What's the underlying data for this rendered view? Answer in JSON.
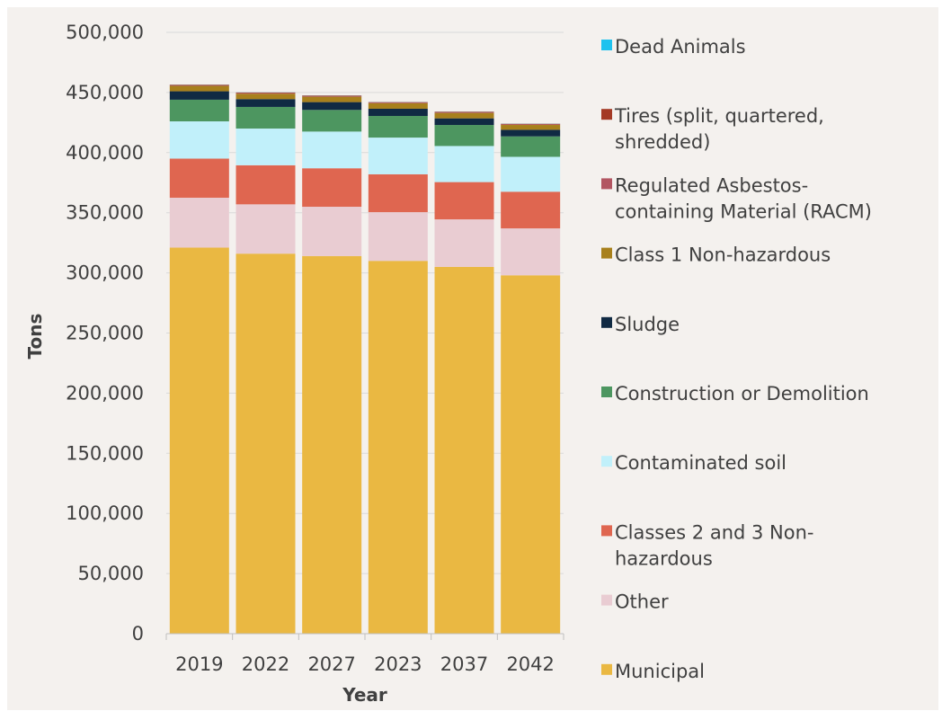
{
  "chart_data": {
    "type": "bar",
    "stacked": true,
    "categories": [
      "2019",
      "2022",
      "2027",
      "2023",
      "2037",
      "2042"
    ],
    "xlabel": "Year",
    "ylabel": "Tons",
    "ylim": [
      0,
      500000
    ],
    "yticks": [
      "0",
      "50,000",
      "100,000",
      "150,000",
      "200,000",
      "250,000",
      "300,000",
      "350,000",
      "400,000",
      "450,000",
      "500,000"
    ],
    "grid": true,
    "legend_position": "right",
    "series": [
      {
        "name": "Municipal",
        "color": "#eab842",
        "values": [
          321000,
          316000,
          314000,
          310000,
          305000,
          298000
        ]
      },
      {
        "name": "Other",
        "color": "#e9ccd2",
        "values": [
          41500,
          41000,
          41000,
          40500,
          39500,
          39000
        ]
      },
      {
        "name": "Classes 2 and 3 Non-hazardous",
        "color": "#df6650",
        "values": [
          32500,
          32500,
          32000,
          31500,
          31000,
          30500
        ]
      },
      {
        "name": "Contaminated soil",
        "color": "#c1f0fa",
        "values": [
          31000,
          30500,
          30500,
          30500,
          30000,
          29000
        ]
      },
      {
        "name": "Construction or Demolition",
        "color": "#4d9660",
        "values": [
          18000,
          18000,
          18000,
          18000,
          17500,
          17000
        ]
      },
      {
        "name": "Sludge",
        "color": "#102a43",
        "values": [
          7000,
          6500,
          6500,
          6000,
          5500,
          5500
        ]
      },
      {
        "name": "Class 1 Non-hazardous",
        "color": "#a8801c",
        "values": [
          4500,
          4500,
          4500,
          4500,
          4500,
          4000
        ]
      },
      {
        "name": "Regulated Asbestos-containing Material (RACM)",
        "color": "#b25561",
        "values": [
          500,
          500,
          500,
          500,
          500,
          500
        ]
      },
      {
        "name": "Tires (split, quartered, shredded)",
        "color": "#a43a25",
        "values": [
          500,
          500,
          500,
          500,
          500,
          500
        ]
      },
      {
        "name": "Dead Animals",
        "color": "#1ec2ef",
        "values": [
          100,
          100,
          100,
          100,
          100,
          100
        ]
      }
    ],
    "legend": [
      {
        "lines": [
          "Dead Animals"
        ],
        "color": "#1ec2ef"
      },
      {
        "lines": [
          "Tires (split, quartered,",
          "shredded)"
        ],
        "color": "#a43a25"
      },
      {
        "lines": [
          "Regulated Asbestos-",
          "containing Material (RACM)"
        ],
        "color": "#b25561"
      },
      {
        "lines": [
          "Class 1 Non-hazardous"
        ],
        "color": "#a8801c"
      },
      {
        "lines": [
          "Sludge"
        ],
        "color": "#102a43"
      },
      {
        "lines": [
          "Construction or Demolition"
        ],
        "color": "#4d9660"
      },
      {
        "lines": [
          "Contaminated soil"
        ],
        "color": "#c1f0fa"
      },
      {
        "lines": [
          "Classes 2 and 3 Non-",
          "hazardous"
        ],
        "color": "#df6650"
      },
      {
        "lines": [
          "Other"
        ],
        "color": "#e9ccd2"
      },
      {
        "lines": [
          "Municipal"
        ],
        "color": "#eab842"
      }
    ]
  }
}
